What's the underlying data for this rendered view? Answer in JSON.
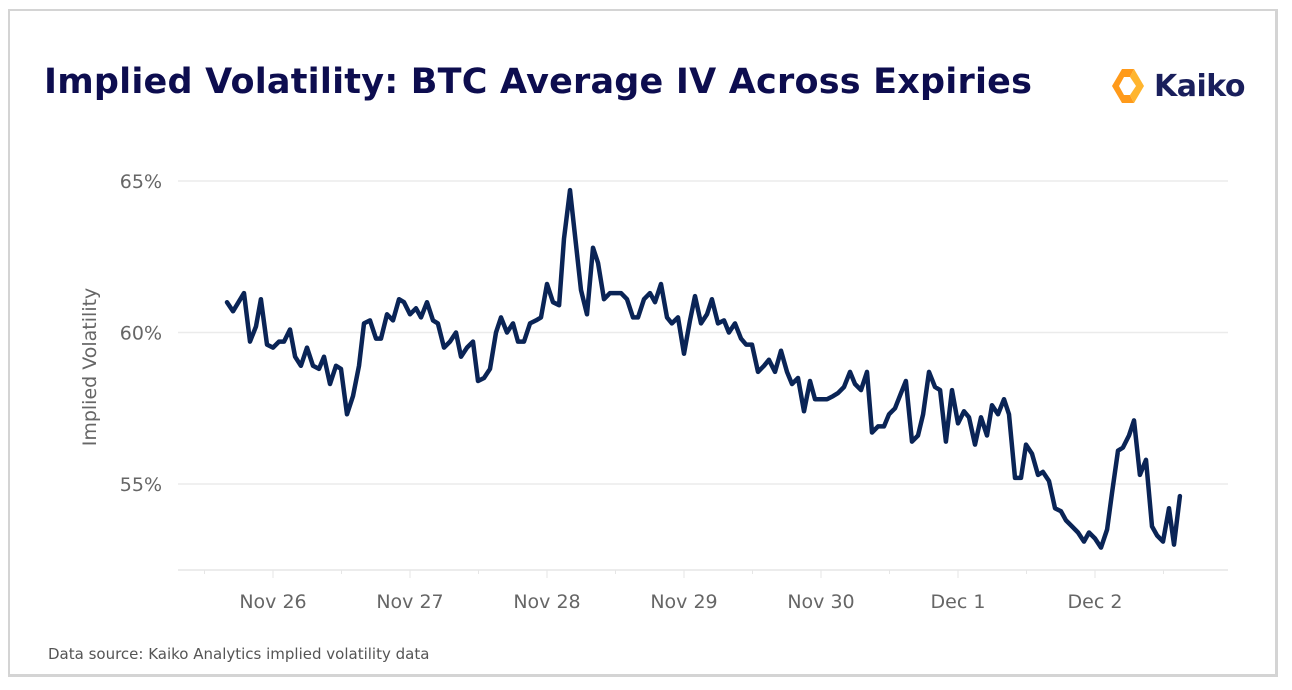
{
  "chart_data": {
    "type": "line",
    "title": "Implied Volatility: BTC Average IV Across Expiries",
    "xlabel": "",
    "ylabel": "Implied Volatility",
    "ylim": [
      52.0,
      65.3
    ],
    "xlim_days_from_nov26": [
      -0.69,
      6.97
    ],
    "y_ticks": [
      {
        "value": 55,
        "label": "55%"
      },
      {
        "value": 60,
        "label": "60%"
      },
      {
        "value": 65,
        "label": "65%"
      }
    ],
    "x_ticks": [
      {
        "value": 0,
        "label": "Nov 26"
      },
      {
        "value": 1,
        "label": "Nov 27"
      },
      {
        "value": 2,
        "label": "Nov 28"
      },
      {
        "value": 3,
        "label": "Nov 29"
      },
      {
        "value": 4,
        "label": "Nov 30"
      },
      {
        "value": 5,
        "label": "Dec 1"
      },
      {
        "value": 6,
        "label": "Dec 2"
      }
    ],
    "grid": "horizontal",
    "legend": "none",
    "line_color": "#0a2456",
    "series": [
      {
        "name": "BTC Average IV",
        "x_days_from_nov26": [
          -0.336,
          -0.292,
          -0.212,
          -0.168,
          -0.124,
          -0.088,
          -0.044,
          0.0,
          0.044,
          0.08,
          0.124,
          0.161,
          0.204,
          0.248,
          0.292,
          0.336,
          0.372,
          0.416,
          0.46,
          0.496,
          0.54,
          0.584,
          0.628,
          0.664,
          0.708,
          0.752,
          0.788,
          0.832,
          0.876,
          0.92,
          0.956,
          1.0,
          1.044,
          1.08,
          1.124,
          1.168,
          1.204,
          1.248,
          1.292,
          1.336,
          1.372,
          1.416,
          1.46,
          1.496,
          1.54,
          1.584,
          1.628,
          1.664,
          1.708,
          1.752,
          1.788,
          1.832,
          1.876,
          1.92,
          1.956,
          2.0,
          2.044,
          2.088,
          2.124,
          2.168,
          2.212,
          2.248,
          2.292,
          2.336,
          2.372,
          2.416,
          2.46,
          2.504,
          2.54,
          2.584,
          2.628,
          2.664,
          2.708,
          2.752,
          2.788,
          2.832,
          2.876,
          2.912,
          2.956,
          3.0,
          3.044,
          3.08,
          3.124,
          3.168,
          3.204,
          3.248,
          3.292,
          3.328,
          3.372,
          3.416,
          3.453,
          3.496,
          3.54,
          3.584,
          3.62,
          3.664,
          3.708,
          3.752,
          3.788,
          3.832,
          3.876,
          3.92,
          3.956,
          4.0,
          4.044,
          4.088,
          4.124,
          4.168,
          4.212,
          4.248,
          4.292,
          4.336,
          4.372,
          4.416,
          4.46,
          4.496,
          4.54,
          4.584,
          4.62,
          4.664,
          4.708,
          4.745,
          4.788,
          4.832,
          4.869,
          4.912,
          4.956,
          5.0,
          5.044,
          5.08,
          5.124,
          5.168,
          5.212,
          5.248,
          5.292,
          5.336,
          5.372,
          5.416,
          5.46,
          5.496,
          5.54,
          5.584,
          5.62,
          5.664,
          5.708,
          5.752,
          5.788,
          5.832,
          5.876,
          5.92,
          5.956,
          6.0,
          6.044,
          6.088,
          6.124,
          6.168,
          6.204,
          6.248,
          6.285,
          6.328,
          6.372,
          6.416,
          6.453,
          6.496,
          6.54,
          6.577,
          6.62
        ],
        "values": [
          61.0,
          60.7,
          61.3,
          59.7,
          60.2,
          61.1,
          59.6,
          59.5,
          59.7,
          59.7,
          60.1,
          59.2,
          58.9,
          59.5,
          58.9,
          58.8,
          59.2,
          58.3,
          58.9,
          58.8,
          57.3,
          57.9,
          58.9,
          60.3,
          60.4,
          59.8,
          59.8,
          60.6,
          60.4,
          61.1,
          61.0,
          60.6,
          60.8,
          60.5,
          61.0,
          60.4,
          60.3,
          59.5,
          59.7,
          60.0,
          59.2,
          59.5,
          59.7,
          58.4,
          58.5,
          58.8,
          60.0,
          60.5,
          60.0,
          60.3,
          59.7,
          59.7,
          60.3,
          60.4,
          60.5,
          61.6,
          61.0,
          60.9,
          63.1,
          64.7,
          62.9,
          61.4,
          60.6,
          62.8,
          62.3,
          61.1,
          61.3,
          61.3,
          61.3,
          61.1,
          60.5,
          60.5,
          61.1,
          61.3,
          61.0,
          61.6,
          60.5,
          60.3,
          60.5,
          59.3,
          60.4,
          61.2,
          60.3,
          60.6,
          61.1,
          60.3,
          60.4,
          60.0,
          60.3,
          59.8,
          59.6,
          59.6,
          58.7,
          58.9,
          59.1,
          58.7,
          59.4,
          58.7,
          58.3,
          58.5,
          57.4,
          58.4,
          57.8,
          57.8,
          57.8,
          57.9,
          58.0,
          58.2,
          58.7,
          58.3,
          58.1,
          58.7,
          56.7,
          56.9,
          56.9,
          57.3,
          57.5,
          58.0,
          58.4,
          56.4,
          56.6,
          57.3,
          58.7,
          58.2,
          58.1,
          56.4,
          58.1,
          57.0,
          57.4,
          57.2,
          56.3,
          57.2,
          56.6,
          57.6,
          57.3,
          57.8,
          57.3,
          55.2,
          55.2,
          56.3,
          56.0,
          55.3,
          55.4,
          55.1,
          54.2,
          54.1,
          53.8,
          53.6,
          53.4,
          53.1,
          53.4,
          53.2,
          52.9,
          53.5,
          54.7,
          56.1,
          56.2,
          56.6,
          57.1,
          55.3,
          55.8,
          53.6,
          53.3,
          53.1,
          54.2,
          53.0,
          54.6
        ]
      }
    ]
  },
  "header": {
    "title": "Implied Volatility: BTC Average IV Across Expiries",
    "logo_text": "Kaiko"
  },
  "footer": {
    "source": "Data source: Kaiko Analytics implied volatility data"
  }
}
